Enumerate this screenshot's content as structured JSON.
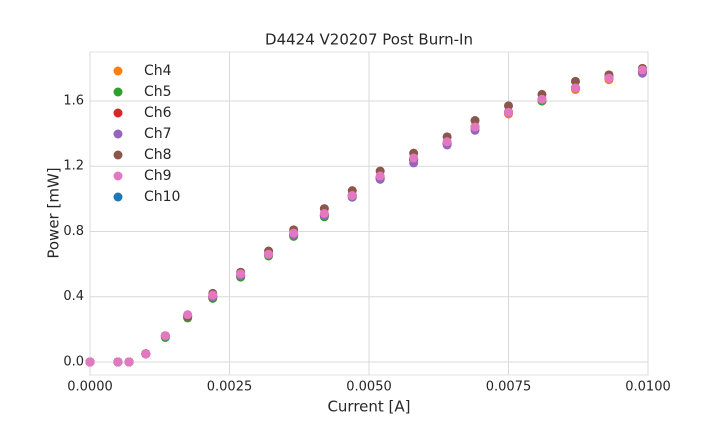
{
  "chart_data": {
    "type": "scatter",
    "title": "D4424 V20207 Post Burn-In",
    "x_label": "Current [A]",
    "y_label": "Power [mW]",
    "x": [
      0,
      0.0005,
      0.0007,
      0.001,
      0.00135,
      0.00175,
      0.0022,
      0.0027,
      0.0032,
      0.00365,
      0.0042,
      0.0047,
      0.0052,
      0.0058,
      0.0064,
      0.0069,
      0.0075,
      0.0081,
      0.0087,
      0.0093,
      0.0099
    ],
    "series": [
      {
        "name": "Ch4",
        "color": "#ff7f0e",
        "values": [
          0,
          0,
          0,
          0.05,
          0.16,
          0.28,
          0.4,
          0.53,
          0.66,
          0.78,
          0.9,
          1.02,
          1.13,
          1.24,
          1.34,
          1.44,
          1.52,
          1.6,
          1.67,
          1.73,
          1.78
        ]
      },
      {
        "name": "Ch5",
        "color": "#2ca02c",
        "values": [
          0,
          0,
          0,
          0.05,
          0.15,
          0.27,
          0.39,
          0.52,
          0.65,
          0.77,
          0.89,
          1.01,
          1.12,
          1.24,
          1.34,
          1.44,
          1.53,
          1.6,
          1.68,
          1.75,
          1.78
        ]
      },
      {
        "name": "Ch6",
        "color": "#d62728",
        "values": [
          0,
          0,
          0,
          0.05,
          0.16,
          0.28,
          0.4,
          0.53,
          0.66,
          0.78,
          0.9,
          1.02,
          1.13,
          1.24,
          1.34,
          1.44,
          1.53,
          1.61,
          1.68,
          1.74,
          1.78
        ]
      },
      {
        "name": "Ch7",
        "color": "#9467bd",
        "values": [
          0,
          0,
          0,
          0.05,
          0.16,
          0.28,
          0.4,
          0.53,
          0.66,
          0.78,
          0.9,
          1.01,
          1.12,
          1.22,
          1.33,
          1.42,
          1.53,
          1.61,
          1.68,
          1.74,
          1.77
        ]
      },
      {
        "name": "Ch8",
        "color": "#8c564b",
        "values": [
          0,
          0,
          0,
          0.05,
          0.16,
          0.28,
          0.42,
          0.55,
          0.68,
          0.81,
          0.94,
          1.05,
          1.17,
          1.28,
          1.38,
          1.48,
          1.57,
          1.64,
          1.72,
          1.76,
          1.8
        ]
      },
      {
        "name": "Ch9",
        "color": "#e377c2",
        "values": [
          0,
          0,
          0,
          0.05,
          0.16,
          0.29,
          0.41,
          0.54,
          0.66,
          0.79,
          0.91,
          1.02,
          1.14,
          1.25,
          1.35,
          1.44,
          1.53,
          1.61,
          1.68,
          1.74,
          1.79
        ]
      },
      {
        "name": "Ch10",
        "color": "#1f77b4",
        "values": [
          0,
          0,
          0,
          0.05,
          0.16,
          0.28,
          0.4,
          0.53,
          0.66,
          0.78,
          0.9,
          1.02,
          1.13,
          1.24,
          1.34,
          1.44,
          1.53,
          1.61,
          1.68,
          1.74,
          1.78
        ]
      }
    ],
    "xlim": [
      0,
      0.01
    ],
    "ylim": [
      -0.08,
      1.9
    ],
    "xticks": [
      {
        "value": 0,
        "label": "0.0000"
      },
      {
        "value": 0.0025,
        "label": "0.0025"
      },
      {
        "value": 0.005,
        "label": "0.0050"
      },
      {
        "value": 0.0075,
        "label": "0.0075"
      },
      {
        "value": 0.01,
        "label": "0.0100"
      }
    ],
    "yticks": [
      {
        "value": 0,
        "label": "0.0"
      },
      0.4,
      0.8,
      1.2,
      1.6
    ],
    "grid": true,
    "legend": "upper-left"
  }
}
